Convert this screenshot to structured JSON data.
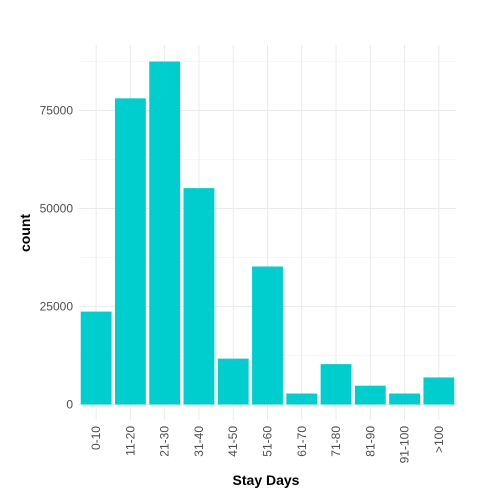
{
  "chart_data": {
    "type": "bar",
    "categories": [
      "0-10",
      "11-20",
      "21-30",
      "31-40",
      "41-50",
      "51-60",
      "61-70",
      "71-80",
      "81-90",
      "91-100",
      ">100"
    ],
    "values": [
      23700,
      78100,
      87500,
      55200,
      11700,
      35200,
      2800,
      10300,
      4800,
      2800,
      6900
    ],
    "title": "",
    "xlabel": "Stay Days",
    "ylabel": "count",
    "ylim": [
      0,
      92000
    ],
    "yticks": [
      0,
      25000,
      50000,
      75000
    ],
    "ytick_labels": [
      "0",
      "25000",
      "50000",
      "75000"
    ],
    "bar_color": "#00CDCD",
    "grid": true,
    "legend": "none"
  }
}
